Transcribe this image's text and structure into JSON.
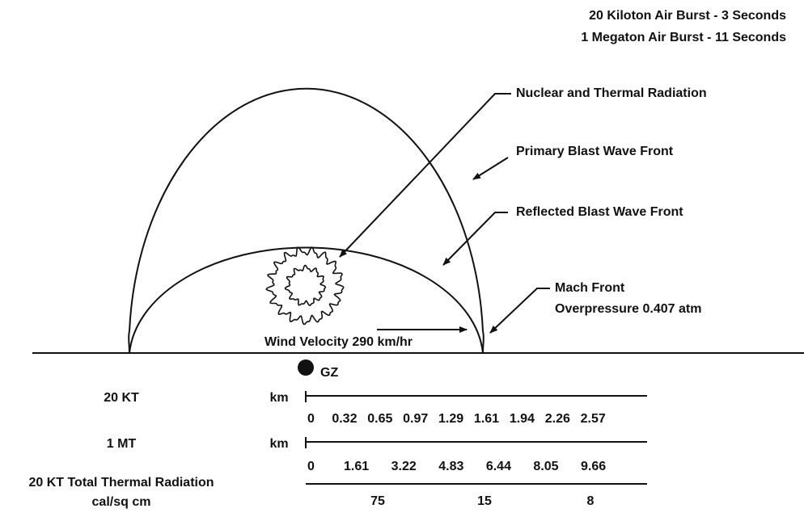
{
  "header": [
    "20 Kiloton Air Burst - 3 Seconds",
    "1 Megaton Air Burst - 11 Seconds"
  ],
  "labels": {
    "nuclear": "Nuclear and Thermal Radiation",
    "primary": "Primary Blast Wave Front",
    "reflected": "Reflected Blast Wave Front",
    "mach": [
      "Mach Front",
      "Overpressure 0.407 atm"
    ]
  },
  "wind": "Wind Velocity 290 km/hr",
  "gz": "GZ",
  "scales": [
    {
      "name": "20 KT",
      "unit": "km",
      "ticks": [
        "0",
        "0.32",
        "0.65",
        "0.97",
        "1.29",
        "1.61",
        "1.94",
        "2.26",
        "2.57"
      ]
    },
    {
      "name": "1 MT",
      "unit": "km",
      "ticks": [
        "0",
        "1.61",
        "3.22",
        "4.83",
        "6.44",
        "8.05",
        "9.66"
      ]
    }
  ],
  "thermal": {
    "name": [
      "20 KT Total Thermal Radiation",
      "cal/sq cm"
    ],
    "values": [
      "75",
      "15",
      "8"
    ]
  }
}
